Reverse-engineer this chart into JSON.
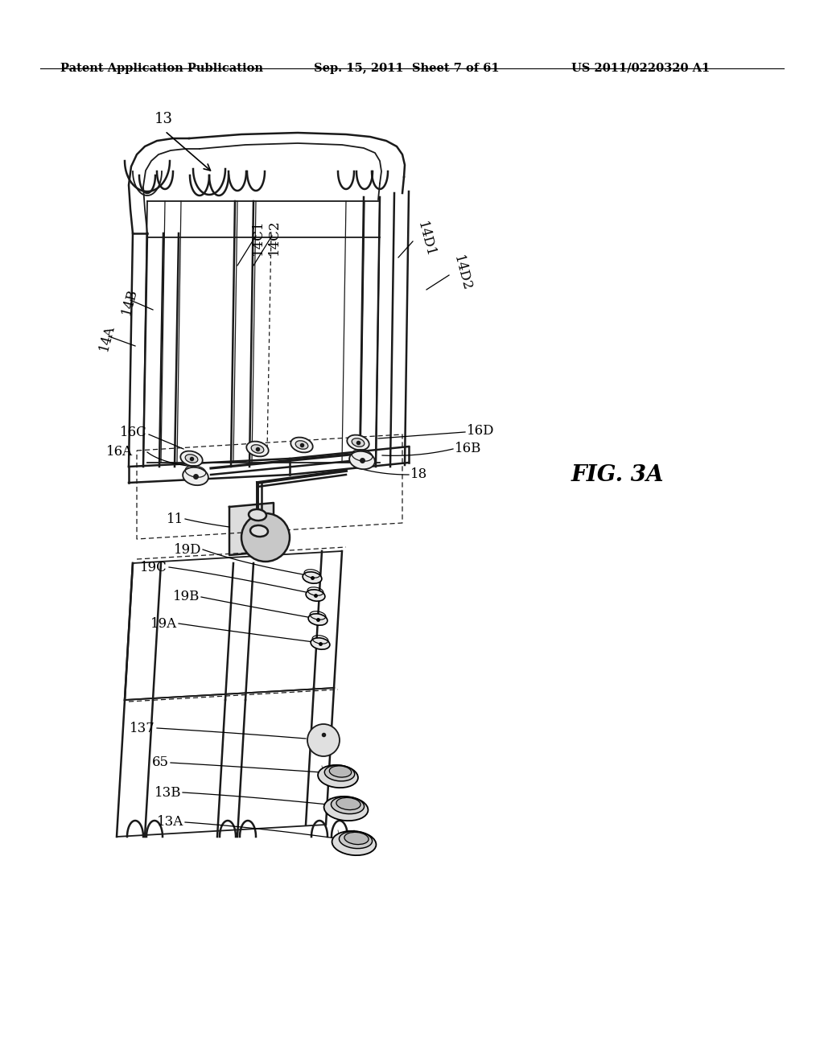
{
  "background_color": "#ffffff",
  "header_left": "Patent Application Publication",
  "header_center": "Sep. 15, 2011  Sheet 7 of 61",
  "header_right": "US 2011/0220320 A1",
  "fig_label": "FIG. 3A",
  "line_color": "#1a1a1a",
  "lw_main": 1.8,
  "lw_med": 1.3,
  "lw_thin": 0.9
}
